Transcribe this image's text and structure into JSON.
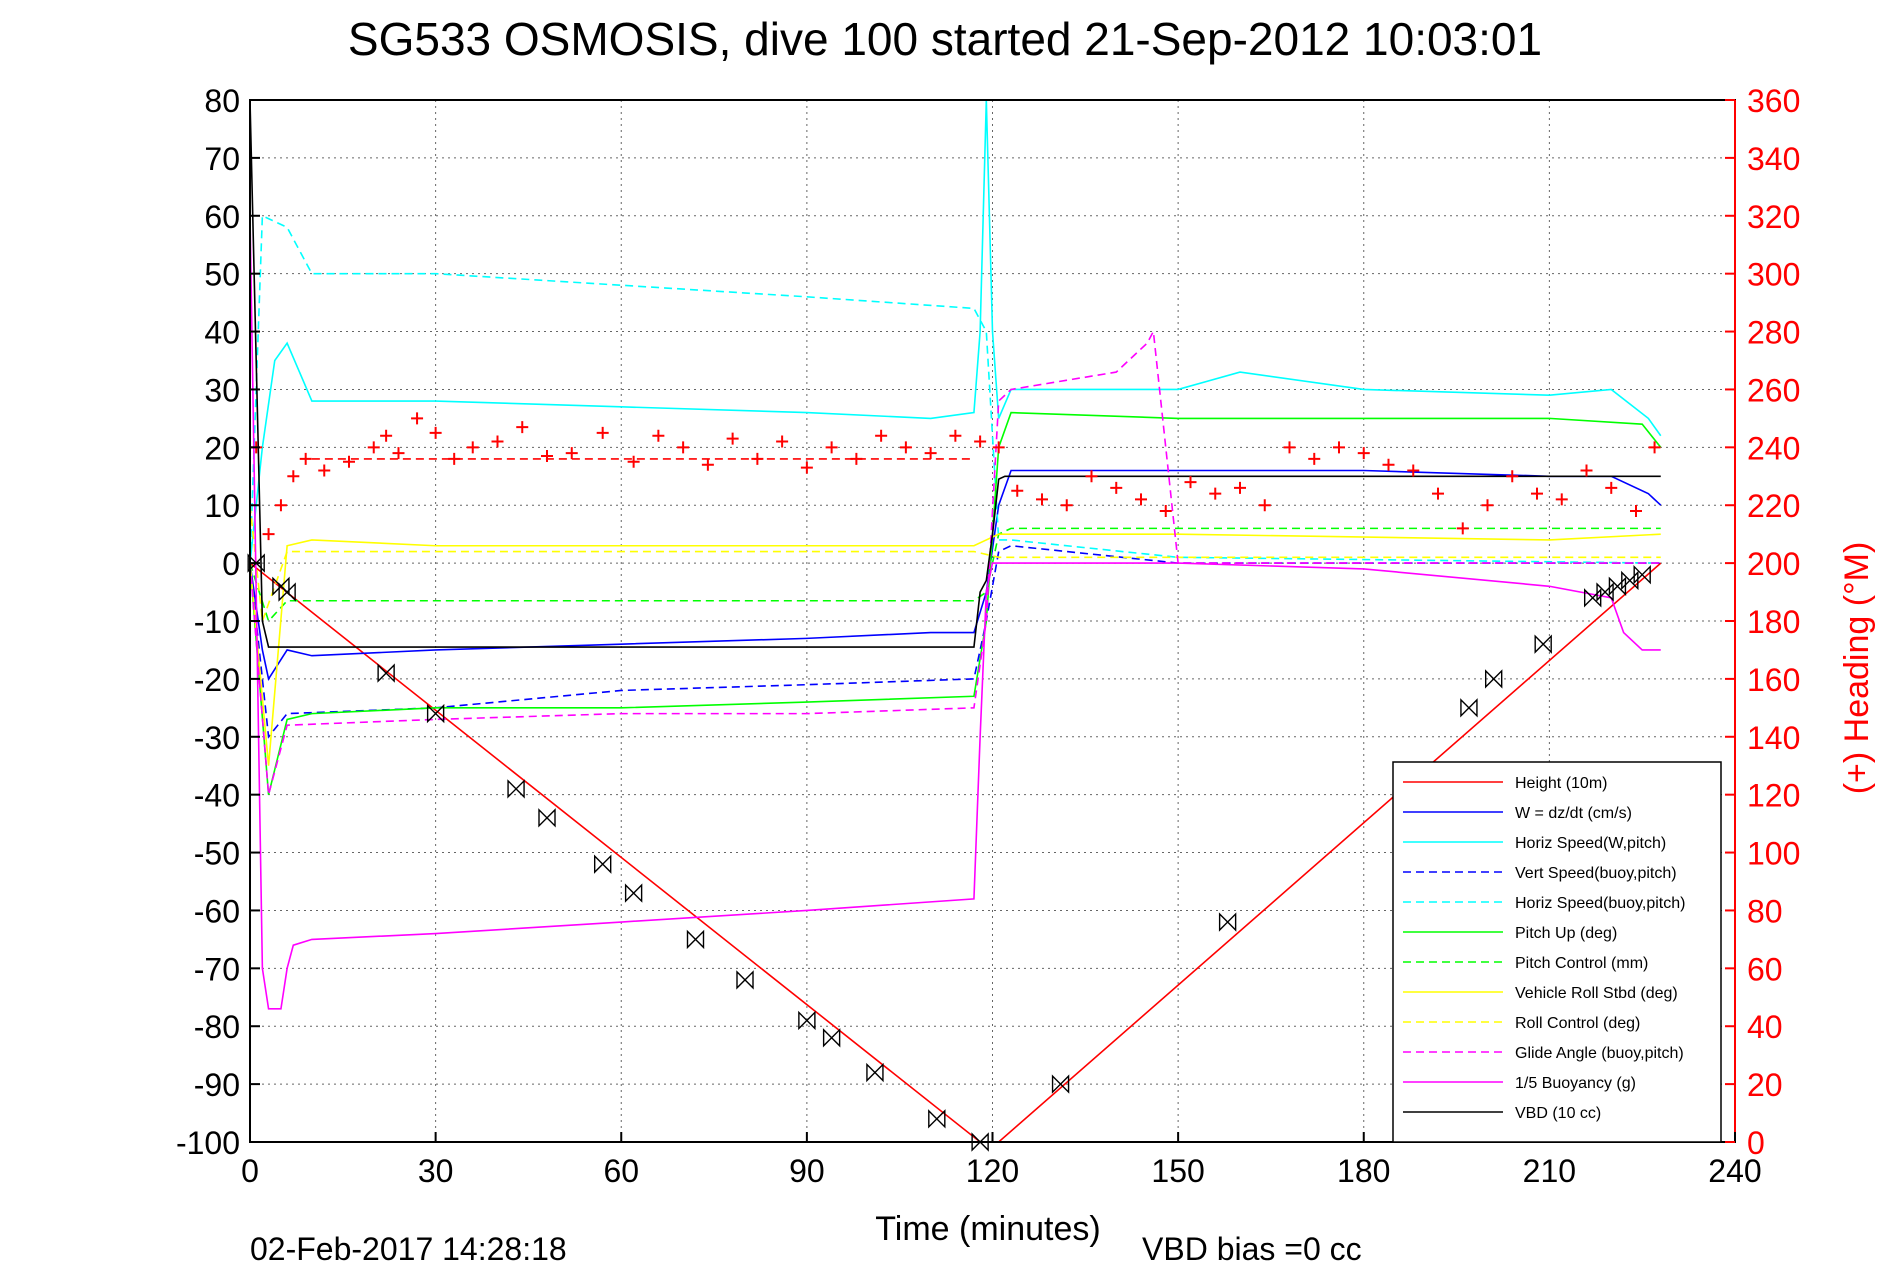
{
  "chart_data": {
    "type": "line",
    "title": "SG533 OSMOSIS, dive 100 started 21-Sep-2012 10:03:01",
    "xlabel": "Time (minutes)",
    "ylabel_right": "(+) Heading (°M)",
    "xlim": [
      0,
      240
    ],
    "ylim_left": [
      -100,
      80
    ],
    "ylim_right": [
      0,
      360
    ],
    "x_ticks": [
      "0",
      "30",
      "60",
      "90",
      "120",
      "150",
      "180",
      "210",
      "240"
    ],
    "y_ticks_left": [
      "80",
      "70",
      "60",
      "50",
      "40",
      "30",
      "20",
      "10",
      "0",
      "-10",
      "-20",
      "-30",
      "-40",
      "-50",
      "-60",
      "-70",
      "-80",
      "-90",
      "-100"
    ],
    "y_ticks_right": [
      "360",
      "340",
      "320",
      "300",
      "280",
      "260",
      "240",
      "220",
      "200",
      "180",
      "160",
      "140",
      "120",
      "100",
      "80",
      "60",
      "40",
      "20",
      "0"
    ],
    "grid": true,
    "legend_position": "bottom-right",
    "series": [
      {
        "name": "Height (10m)",
        "color": "#ff0000",
        "dash": "solid",
        "x": [
          0,
          118,
          121,
          228
        ],
        "y": [
          0,
          -100,
          -100,
          0
        ]
      },
      {
        "name": "W = dz/dt (cm/s)",
        "color": "#0000ff",
        "dash": "solid",
        "x": [
          0,
          2,
          3,
          6,
          10,
          30,
          60,
          90,
          110,
          117,
          119,
          121,
          123,
          150,
          180,
          210,
          220,
          226,
          228
        ],
        "y": [
          0,
          -15,
          -20,
          -15,
          -16,
          -15,
          -14,
          -13,
          -12,
          -12,
          -5,
          10,
          16,
          16,
          16,
          15,
          15,
          12,
          10
        ]
      },
      {
        "name": "Horiz Speed(W,pitch)",
        "color": "#00ffff",
        "dash": "solid",
        "x": [
          0,
          2,
          4,
          6,
          10,
          30,
          60,
          90,
          110,
          117,
          118,
          119,
          120,
          121,
          123,
          150,
          160,
          180,
          210,
          220,
          226,
          228
        ],
        "y": [
          0,
          20,
          35,
          38,
          28,
          28,
          27,
          26,
          25,
          26,
          40,
          80,
          40,
          25,
          30,
          30,
          33,
          30,
          29,
          30,
          25,
          22
        ]
      },
      {
        "name": "Vert Speed(buoy,pitch)",
        "color": "#0000ff",
        "dash": "dashed",
        "x": [
          0,
          3,
          6,
          30,
          60,
          90,
          117,
          119,
          121,
          123,
          150,
          228
        ],
        "y": [
          0,
          -30,
          -26,
          -25,
          -22,
          -21,
          -20,
          -10,
          2,
          3,
          0,
          0
        ]
      },
      {
        "name": "Horiz Speed(buoy,pitch)",
        "color": "#00ffff",
        "dash": "dashed",
        "x": [
          0,
          2,
          6,
          10,
          30,
          60,
          90,
          117,
          119,
          121,
          123,
          150,
          228
        ],
        "y": [
          0,
          60,
          58,
          50,
          50,
          48,
          46,
          44,
          40,
          4,
          4,
          1,
          0
        ]
      },
      {
        "name": "Pitch Up (deg)",
        "color": "#00ff00",
        "dash": "solid",
        "x": [
          0,
          3,
          6,
          10,
          30,
          60,
          90,
          117,
          119,
          121,
          123,
          150,
          210,
          225,
          228
        ],
        "y": [
          0,
          -40,
          -27,
          -26,
          -25,
          -25,
          -24,
          -23,
          -10,
          20,
          26,
          25,
          25,
          24,
          20
        ]
      },
      {
        "name": "Pitch Control (mm)",
        "color": "#00ff00",
        "dash": "dashed",
        "x": [
          0,
          3,
          6,
          117,
          119,
          121,
          123,
          228
        ],
        "y": [
          0,
          -10,
          -6.5,
          -6.5,
          -5,
          5,
          6,
          6
        ]
      },
      {
        "name": "Vehicle Roll Stbd (deg)",
        "color": "#ffff00",
        "dash": "solid",
        "x": [
          0,
          3,
          6,
          10,
          30,
          60,
          90,
          117,
          121,
          150,
          210,
          228
        ],
        "y": [
          0,
          -35,
          3,
          4,
          3,
          3,
          3,
          3,
          5,
          5,
          4,
          5
        ]
      },
      {
        "name": "Roll Control (deg)",
        "color": "#ffff00",
        "dash": "dashed",
        "x": [
          0,
          2,
          6,
          117,
          121,
          228
        ],
        "y": [
          10,
          -10,
          2,
          2,
          1,
          1
        ]
      },
      {
        "name": "Glide Angle (buoy,pitch)",
        "color": "#ff00ff",
        "dash": "dashed",
        "x": [
          0,
          3,
          6,
          30,
          60,
          90,
          117,
          119,
          121,
          123,
          140,
          145,
          146,
          150,
          228
        ],
        "y": [
          0,
          -40,
          -28,
          -27,
          -26,
          -26,
          -25,
          -10,
          28,
          30,
          33,
          38,
          40,
          0,
          0
        ]
      },
      {
        "name": "1/5 Buoyancy (g)",
        "color": "#ff00ff",
        "dash": "solid",
        "x": [
          0,
          2,
          3,
          5,
          6,
          7,
          10,
          30,
          60,
          90,
          117,
          118,
          119,
          120,
          121,
          150,
          180,
          210,
          220,
          222,
          225,
          228
        ],
        "y": [
          60,
          -70,
          -77,
          -77,
          -70,
          -66,
          -65,
          -64,
          -62,
          -60,
          -58,
          -30,
          -5,
          0,
          0,
          0,
          -1,
          -4,
          -6,
          -12,
          -15,
          -15
        ]
      },
      {
        "name": "VBD (10 cc)",
        "color": "#000000",
        "dash": "solid",
        "x": [
          0,
          2,
          3,
          4,
          117,
          118,
          119,
          120,
          121,
          122,
          228
        ],
        "y": [
          80,
          -10,
          -14.5,
          -14.5,
          -14.5,
          -5,
          -3,
          5,
          14.5,
          15,
          15
        ]
      }
    ],
    "heading": {
      "color": "#ff0000",
      "marker": "plus",
      "target_heading": 236,
      "x": [
        1,
        3,
        5,
        7,
        9,
        12,
        16,
        20,
        22,
        24,
        27,
        30,
        33,
        36,
        40,
        44,
        48,
        52,
        57,
        62,
        66,
        70,
        74,
        78,
        82,
        86,
        90,
        94,
        98,
        102,
        106,
        110,
        114,
        118,
        121,
        124,
        128,
        132,
        136,
        140,
        144,
        148,
        152,
        156,
        160,
        164,
        168,
        172,
        176,
        180,
        184,
        188,
        192,
        196,
        200,
        204,
        208,
        212,
        216,
        220,
        224,
        227
      ],
      "y": [
        240,
        210,
        220,
        230,
        236,
        232,
        235,
        240,
        244,
        238,
        250,
        245,
        236,
        240,
        242,
        247,
        237,
        238,
        245,
        235,
        244,
        240,
        234,
        243,
        236,
        242,
        233,
        240,
        236,
        244,
        240,
        238,
        244,
        242,
        240,
        225,
        222,
        220,
        230,
        226,
        222,
        218,
        228,
        224,
        226,
        220,
        240,
        236,
        240,
        238,
        234,
        232,
        224,
        212,
        220,
        230,
        224,
        222,
        232,
        226,
        218,
        240
      ]
    },
    "markers": {
      "symbol": "bowtie",
      "x": [
        1,
        5,
        6,
        22,
        30,
        43,
        48,
        57,
        62,
        72,
        80,
        90,
        94,
        101,
        111,
        118,
        131,
        158,
        197,
        201,
        209,
        217,
        219,
        221,
        223,
        225
      ],
      "y": [
        0,
        -4,
        -5,
        -19,
        -26,
        -39,
        -44,
        -52,
        -57,
        -65,
        -72,
        -79,
        -82,
        -88,
        -96,
        -100,
        -90,
        -62,
        -25,
        -20,
        -14,
        -6,
        -5,
        -4,
        -3,
        -2
      ]
    },
    "footer_left": "02-Feb-2017 14:28:18",
    "footer_right": "VBD bias =0 cc"
  }
}
